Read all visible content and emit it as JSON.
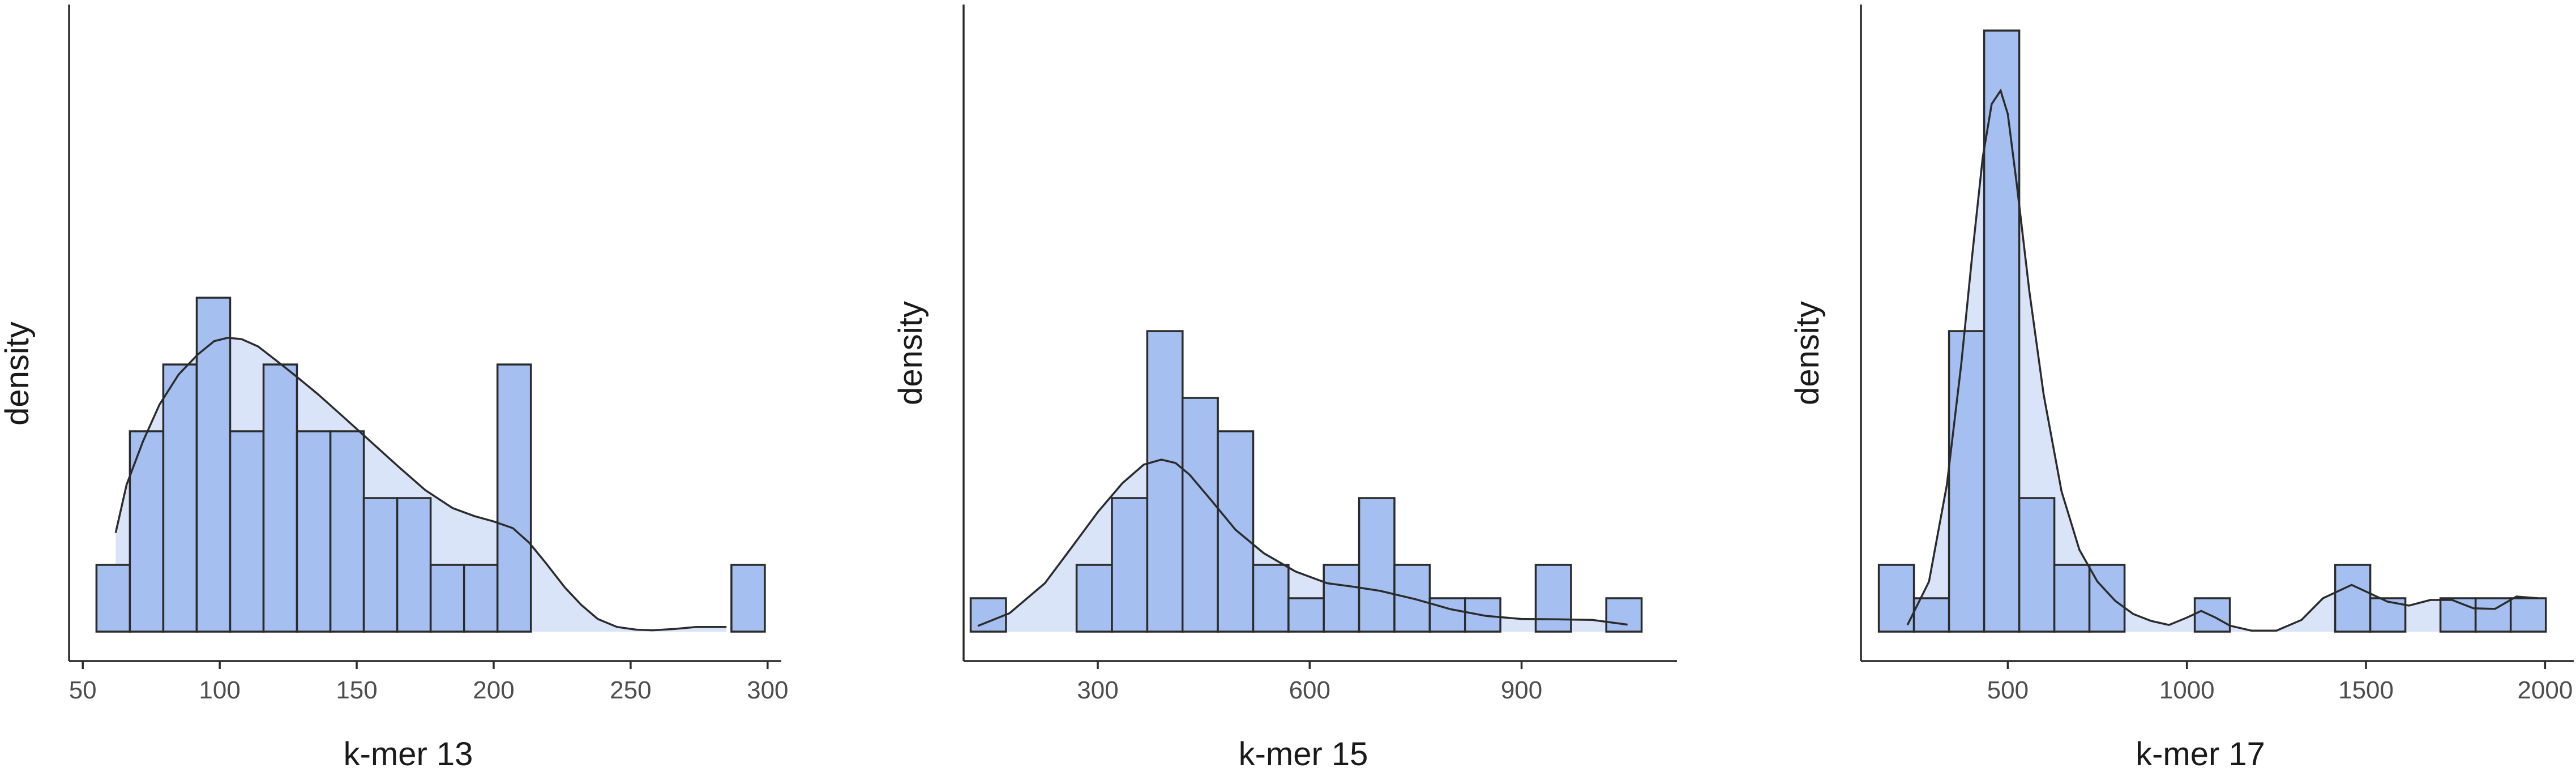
{
  "colors": {
    "bar_fill": "#a5bff0",
    "density_fill": "#d9e4f8",
    "outline": "#2b2b2b",
    "tick_text": "#4d4d4d",
    "title_text": "#1a1a1a",
    "background": "#ffffff"
  },
  "chart_data": [
    {
      "type": "bar",
      "subtype": "histogram with density overlay",
      "title": "",
      "xlabel": "k-mer 13",
      "ylabel": "density",
      "xlim": [
        45,
        305
      ],
      "xticks": [
        50,
        100,
        150,
        200,
        250,
        300
      ],
      "xtick_labels": [
        "50",
        "100",
        "150",
        "200",
        "250",
        "300"
      ],
      "y_axis": "no ticks or tick labels; bar heights are relative counts",
      "grid": false,
      "bins": {
        "start": 55,
        "width": 12.2,
        "counts": [
          1,
          3,
          4,
          5,
          3,
          4,
          3,
          3,
          2,
          2,
          1,
          1,
          4,
          0,
          0,
          0,
          0,
          0,
          0,
          1
        ]
      },
      "density_curve": {
        "x": [
          62,
          66,
          72,
          78,
          85,
          92,
          98,
          103,
          108,
          114,
          120,
          128,
          136,
          145,
          155,
          165,
          175,
          185,
          193,
          200,
          207,
          213,
          219,
          226,
          232,
          238,
          245,
          252,
          258,
          266,
          274,
          285
        ],
        "y": [
          1.48,
          2.2,
          2.85,
          3.4,
          3.85,
          4.15,
          4.35,
          4.4,
          4.38,
          4.27,
          4.08,
          3.82,
          3.55,
          3.22,
          2.85,
          2.48,
          2.12,
          1.85,
          1.73,
          1.65,
          1.55,
          1.33,
          1.03,
          0.66,
          0.4,
          0.19,
          0.07,
          0.03,
          0.02,
          0.04,
          0.07,
          0.07
        ]
      }
    },
    {
      "type": "bar",
      "subtype": "histogram with density overlay",
      "title": "",
      "xlabel": "k-mer 15",
      "ylabel": "density",
      "xlim": [
        110,
        1120
      ],
      "xticks": [
        300,
        600,
        900
      ],
      "xtick_labels": [
        "300",
        "600",
        "900"
      ],
      "y_axis": "no ticks or tick labels; bar heights are relative counts",
      "grid": false,
      "bins": {
        "start": 120,
        "width": 50,
        "counts": [
          1,
          0,
          0,
          2,
          4,
          9,
          7,
          6,
          2,
          1,
          2,
          4,
          2,
          1,
          1,
          0,
          2,
          0,
          1
        ]
      },
      "density_curve": {
        "x": [
          130,
          175,
          225,
          265,
          300,
          335,
          365,
          390,
          410,
          430,
          460,
          495,
          535,
          580,
          625,
          660,
          700,
          750,
          800,
          850,
          900,
          950,
          1000,
          1050
        ],
        "y": [
          0.17,
          0.55,
          1.45,
          2.58,
          3.58,
          4.45,
          5.0,
          5.15,
          5.05,
          4.7,
          3.95,
          3.05,
          2.35,
          1.8,
          1.45,
          1.35,
          1.22,
          0.97,
          0.67,
          0.47,
          0.38,
          0.37,
          0.35,
          0.21
        ]
      }
    },
    {
      "type": "bar",
      "subtype": "histogram with density overlay",
      "title": "",
      "xlabel": "k-mer 17",
      "ylabel": "density",
      "xlim": [
        90,
        2080
      ],
      "xticks": [
        500,
        1000,
        1500,
        2000
      ],
      "xtick_labels": [
        "500",
        "1000",
        "1500",
        "2000"
      ],
      "y_axis": "no ticks or tick labels; bar heights are relative counts",
      "grid": false,
      "bins": {
        "start": 140,
        "width": 98,
        "counts": [
          2,
          1,
          9,
          18,
          4,
          2,
          2,
          0,
          0,
          1,
          0,
          0,
          0,
          2,
          1,
          0,
          1,
          1,
          1
        ]
      },
      "density_curve": {
        "x": [
          220,
          280,
          330,
          370,
          400,
          430,
          455,
          480,
          500,
          525,
          560,
          600,
          650,
          700,
          750,
          800,
          850,
          900,
          950,
          1000,
          1040,
          1080,
          1120,
          1180,
          1250,
          1320,
          1380,
          1420,
          1460,
          1500,
          1560,
          1620,
          1680,
          1740,
          1800,
          1860,
          1920,
          1980
        ],
        "y": [
          0.2,
          1.5,
          4.4,
          8.0,
          11.2,
          14.2,
          15.8,
          16.2,
          15.5,
          13.4,
          10.2,
          7.1,
          4.2,
          2.45,
          1.5,
          0.92,
          0.53,
          0.32,
          0.2,
          0.42,
          0.62,
          0.42,
          0.18,
          0.03,
          0.03,
          0.35,
          1.0,
          1.2,
          1.4,
          1.2,
          0.9,
          0.78,
          0.95,
          0.95,
          0.7,
          0.68,
          1.05,
          1.0
        ]
      }
    }
  ]
}
